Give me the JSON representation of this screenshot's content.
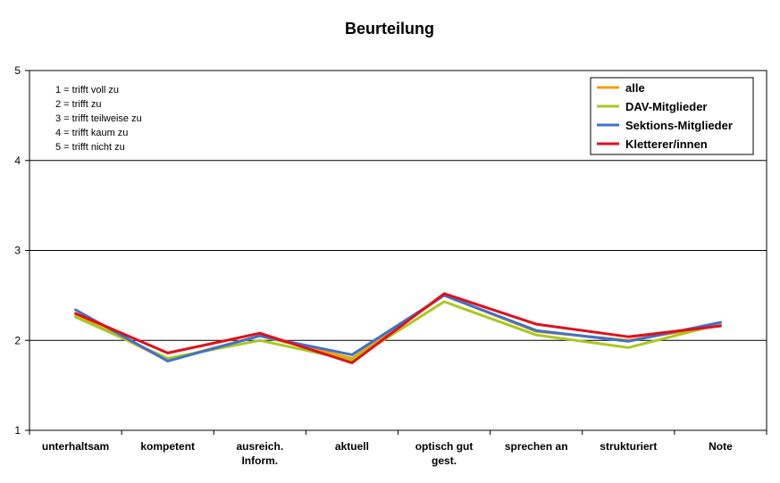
{
  "chart_data": {
    "type": "line",
    "title": "Beurteilung",
    "xlabel": "",
    "ylabel": "",
    "ylim": [
      1,
      5
    ],
    "yticks": [
      "1",
      "2",
      "3",
      "4",
      "5"
    ],
    "grid": true,
    "legend_position": "top-right",
    "categories": [
      [
        "unterhaltsam"
      ],
      [
        "kompetent"
      ],
      [
        "ausreich.",
        "Inform."
      ],
      [
        "aktuell"
      ],
      [
        "optisch gut",
        "gest."
      ],
      [
        "sprechen an"
      ],
      [
        "strukturiert"
      ],
      [
        "Note"
      ]
    ],
    "annotation": [
      "1 = trifft voll zu",
      "2 = trifft zu",
      "3 = trifft teilweise zu",
      "4 = trifft kaum zu",
      "5 = trifft nicht zu"
    ],
    "series": [
      {
        "name": "alle",
        "color": "#f0a000",
        "values": [
          2.28,
          1.78,
          2.05,
          1.8,
          2.5,
          2.1,
          2.0,
          2.17
        ]
      },
      {
        "name": "DAV-Mitglieder",
        "color": "#a8c820",
        "values": [
          2.26,
          1.8,
          2.0,
          1.78,
          2.43,
          2.06,
          1.92,
          2.18
        ]
      },
      {
        "name": "Sektions-Mitglieder",
        "color": "#4070d0",
        "values": [
          2.34,
          1.77,
          2.05,
          1.84,
          2.5,
          2.11,
          1.99,
          2.2
        ]
      },
      {
        "name": "Kletterer/innen",
        "color": "#e0101a",
        "values": [
          2.3,
          1.86,
          2.08,
          1.75,
          2.52,
          2.18,
          2.04,
          2.16
        ]
      }
    ]
  }
}
